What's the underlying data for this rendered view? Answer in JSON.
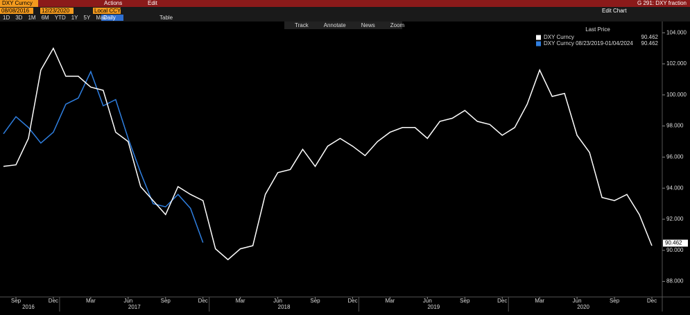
{
  "top_bar": {
    "security": "DXY Curncy",
    "actions": "Actions",
    "edit": "Edit",
    "page": "G 291: DXY fraction"
  },
  "controls": {
    "start_date": "08/08/2016",
    "end_date": "12/23/2020",
    "currency": "Local CCY",
    "edit_chart": "Edit Chart",
    "periods": [
      "1D",
      "3D",
      "1M",
      "6M",
      "YTD",
      "1Y",
      "5Y",
      "Max"
    ],
    "frequency": "Daily",
    "table": "Table"
  },
  "chart_tools": [
    "Track",
    "Annotate",
    "News",
    "Zoom"
  ],
  "chart_data": {
    "type": "line",
    "legend_title": "Last Price",
    "categories": [
      null,
      "Sep",
      null,
      null,
      "Dec",
      null,
      null,
      "Mar",
      null,
      null,
      "Jun",
      null,
      null,
      "Sep",
      null,
      null,
      "Dec",
      null,
      null,
      "Mar",
      null,
      null,
      "Jun",
      null,
      null,
      "Sep",
      null,
      null,
      "Dec",
      null,
      null,
      "Mar",
      null,
      null,
      "Jun",
      null,
      null,
      "Sep",
      null,
      null,
      "Dec",
      null,
      null,
      "Mar",
      null,
      null,
      "Jun",
      null,
      null,
      "Sep",
      null,
      null,
      "Dec"
    ],
    "year_labels": [
      "2016",
      "2017",
      "2018",
      "2019",
      "2020"
    ],
    "series": [
      {
        "name": "DXY Curncy",
        "color": "#ffffff",
        "last": 90.462,
        "values": [
          95.4,
          95.5,
          97.2,
          101.6,
          103.0,
          101.2,
          101.2,
          100.5,
          100.3,
          97.6,
          97.0,
          94.1,
          93.2,
          92.3,
          94.1,
          93.6,
          93.2,
          90.1,
          89.4,
          90.1,
          90.3,
          93.6,
          95.0,
          95.2,
          96.5,
          95.4,
          96.7,
          97.2,
          96.7,
          96.1,
          97.0,
          97.6,
          97.9,
          97.9,
          97.2,
          98.3,
          98.5,
          99.0,
          98.3,
          98.1,
          97.4,
          97.9,
          99.4,
          101.6,
          99.9,
          100.1,
          97.4,
          96.3,
          93.4,
          93.2,
          93.6,
          92.3,
          90.3
        ]
      },
      {
        "name": "DXY Curncy 08/23/2019-01/04/2024",
        "color": "#2f7fe0",
        "last": 90.462,
        "values": [
          97.5,
          98.6,
          97.9,
          96.9,
          97.6,
          99.4,
          99.8,
          101.5,
          99.3,
          99.7,
          97.2,
          95.0,
          93.0,
          92.8,
          93.6,
          92.7,
          90.5,
          null,
          null,
          null,
          null,
          null,
          null,
          null,
          null,
          null,
          null,
          null,
          null,
          null,
          null,
          null,
          null,
          null,
          null,
          null,
          null,
          null,
          null,
          null,
          null,
          null,
          null,
          null,
          null,
          null,
          null,
          null,
          null,
          null,
          null,
          null,
          null
        ]
      }
    ],
    "ylim": [
      87,
      104.5
    ],
    "yticks": [
      {
        "value": 88,
        "label": "88.000"
      },
      {
        "value": 90,
        "label": "90.000"
      },
      {
        "value": 92,
        "label": "92.000"
      },
      {
        "value": 94,
        "label": "94.000"
      },
      {
        "value": 96,
        "label": "96.000"
      },
      {
        "value": 98,
        "label": "98.000"
      },
      {
        "value": 100,
        "label": "100.000"
      },
      {
        "value": 102,
        "label": "102.000"
      },
      {
        "value": 104,
        "label": "104.000"
      }
    ]
  }
}
